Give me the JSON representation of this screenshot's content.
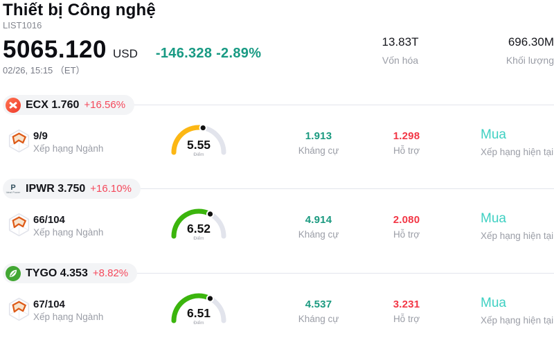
{
  "header": {
    "title": "Thiết bị Công nghệ",
    "list_id": "LIST1016",
    "price": "5065.120",
    "currency": "USD",
    "change": "-146.328 -2.89%",
    "datetime": "02/26, 15:15 （ET）",
    "stats": [
      {
        "value": "13.83T",
        "label": "Vốn hóa"
      },
      {
        "value": "696.30M",
        "label": "Khối lượng"
      }
    ]
  },
  "labels": {
    "score": "Điểm",
    "industry_rank": "Xếp hạng Ngành",
    "resistance": "Kháng cự",
    "support": "Hỗ trợ",
    "current_rating": "Xếp hạng hiện tại"
  },
  "colors": {
    "change_up_teal": "#189a83",
    "change_down_red": "#f4485b",
    "resistance_teal": "#1b9a80",
    "support_red": "#f23645",
    "buy_cyan": "#3ed0c2",
    "gauge_track": "#e2e4ec",
    "gauge_yellow": "#fcb714",
    "gauge_green": "#3bb50d",
    "divider": "#e2e4ec"
  },
  "rows": [
    {
      "ticker": "ECX",
      "price": "1.760",
      "change": "+16.56%",
      "logo": "ecx-logo",
      "rank": "9/9",
      "gauge": {
        "value": 5.55,
        "display": "5.55",
        "max": 10,
        "color": "#fcb714"
      },
      "resistance": "1.913",
      "support": "1.298",
      "rating": "Mua"
    },
    {
      "ticker": "IPWR",
      "price": "3.750",
      "change": "+16.10%",
      "logo": "ideal-power-logo",
      "logo_letter": "P",
      "logo_caption": "Ideal Power",
      "rank": "66/104",
      "gauge": {
        "value": 6.52,
        "display": "6.52",
        "max": 10,
        "color": "#3bb50d"
      },
      "resistance": "4.914",
      "support": "2.080",
      "rating": "Mua"
    },
    {
      "ticker": "TYGO",
      "price": "4.353",
      "change": "+8.82%",
      "logo": "tygo-leaf-logo",
      "rank": "67/104",
      "gauge": {
        "value": 6.51,
        "display": "6.51",
        "max": 10,
        "color": "#3bb50d"
      },
      "resistance": "4.537",
      "support": "3.231",
      "rating": "Mua"
    }
  ]
}
